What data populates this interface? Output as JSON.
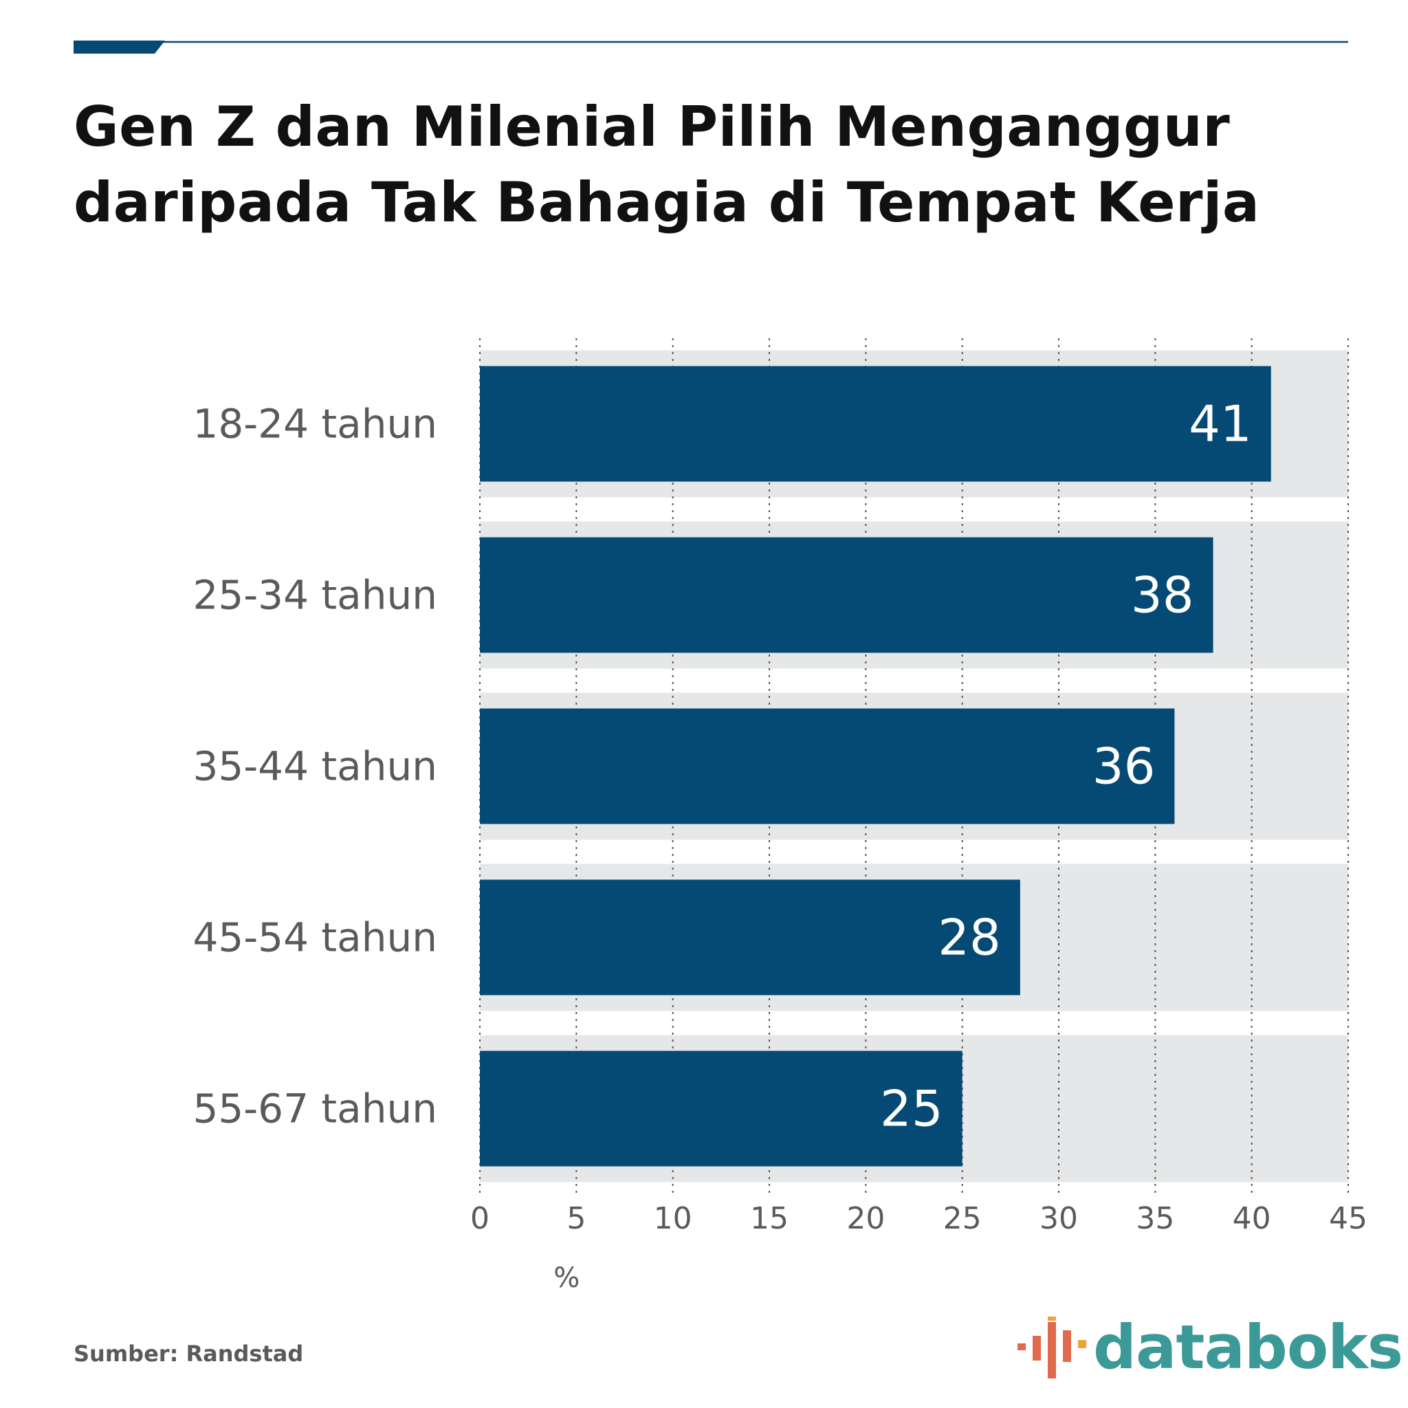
{
  "title_lines": [
    "Gen Z dan Milenial Pilih Menganggur",
    "daripada Tak Bahagia di Tempat Kerja"
  ],
  "source": "Sumber: Randstad",
  "brand": {
    "name": "databoks",
    "logo_icon": "databoks-bars-icon"
  },
  "colors": {
    "bar": "#044a75",
    "band": "#e6e7e8",
    "accent_rule": "#044a75",
    "label": "#5a5a5a",
    "brand_text": "#3b9a98"
  },
  "chart_data": {
    "type": "bar",
    "orientation": "horizontal",
    "categories": [
      "18-24 tahun",
      "25-34 tahun",
      "35-44 tahun",
      "45-54 tahun",
      "55-67 tahun"
    ],
    "values": [
      41,
      38,
      36,
      28,
      25
    ],
    "data_labels": [
      "41",
      "38",
      "36",
      "28",
      "25"
    ],
    "xlim": [
      0,
      45
    ],
    "xticks": [
      0,
      5,
      10,
      15,
      20,
      25,
      30,
      35,
      40,
      45
    ],
    "xtick_labels": [
      "0",
      "5",
      "10",
      "15",
      "20",
      "25",
      "30",
      "35",
      "40",
      "45"
    ],
    "xlabel": "%",
    "grid": true,
    "legend": "none"
  }
}
